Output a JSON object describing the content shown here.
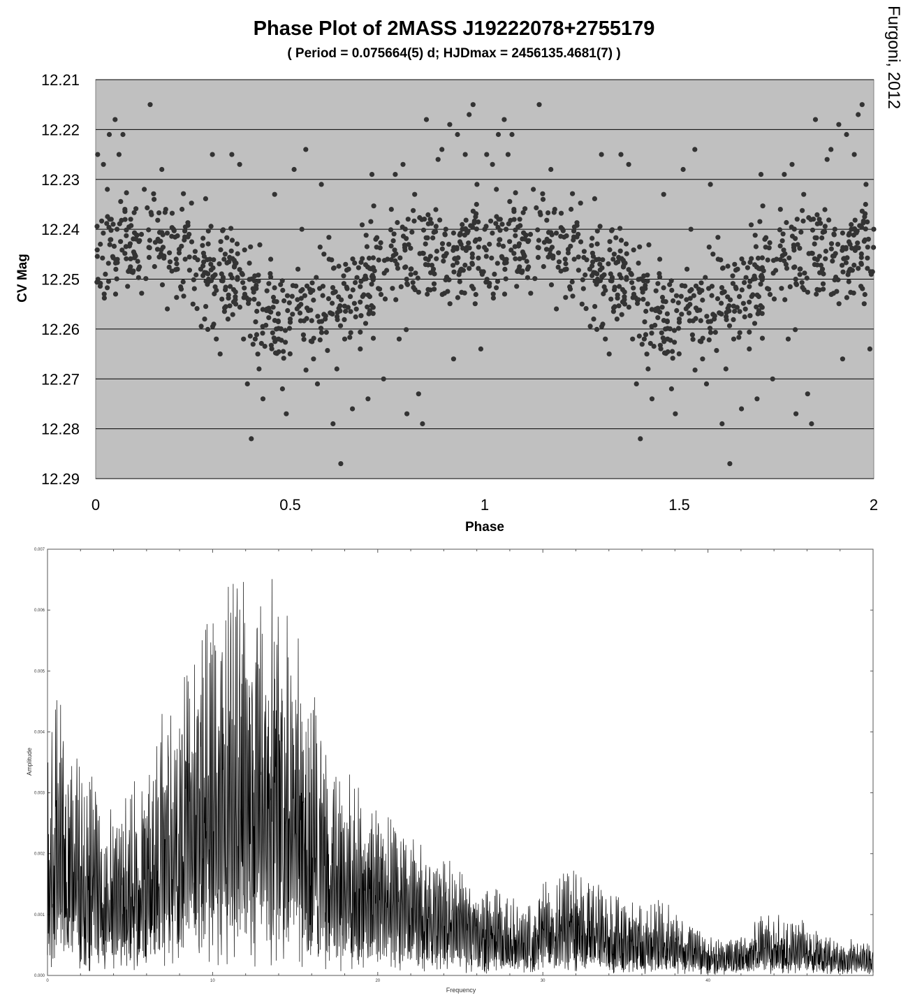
{
  "credit": "Furgoni, 2012",
  "chart_data": [
    {
      "type": "scatter",
      "title": "Phase Plot of 2MASS J19222078+2755179",
      "subtitle": "( Period = 0.075664(5) d; HJDmax = 2456135.4681(7) )",
      "xlabel": "Phase",
      "ylabel": "CV Mag",
      "xlim": [
        0,
        2
      ],
      "ylim": [
        12.21,
        12.29
      ],
      "y_inverted": true,
      "x_ticks": [
        "0",
        "0.5",
        "1",
        "1.5",
        "2"
      ],
      "y_ticks": [
        "12.21",
        "12.22",
        "12.23",
        "12.24",
        "12.25",
        "12.26",
        "12.27",
        "12.28",
        "12.29"
      ],
      "grid": "horizontal",
      "plot_background": "#c0c0c0",
      "marker_color": "#333333",
      "points": [
        [
          0.005,
          12.225
        ],
        [
          0.02,
          12.227
        ],
        [
          0.035,
          12.221
        ],
        [
          0.05,
          12.218
        ],
        [
          0.07,
          12.221
        ],
        [
          0.06,
          12.225
        ],
        [
          0.03,
          12.232
        ],
        [
          0.012,
          12.243
        ],
        [
          0.025,
          12.249
        ],
        [
          0.04,
          12.238
        ],
        [
          0.055,
          12.24
        ],
        [
          0.075,
          12.236
        ],
        [
          0.09,
          12.238
        ],
        [
          0.1,
          12.245
        ],
        [
          0.11,
          12.248
        ],
        [
          0.125,
          12.232
        ],
        [
          0.14,
          12.215
        ],
        [
          0.15,
          12.234
        ],
        [
          0.16,
          12.242
        ],
        [
          0.17,
          12.228
        ],
        [
          0.18,
          12.236
        ],
        [
          0.2,
          12.24
        ],
        [
          0.21,
          12.248
        ],
        [
          0.22,
          12.252
        ],
        [
          0.23,
          12.246
        ],
        [
          0.24,
          12.241
        ],
        [
          0.25,
          12.255
        ],
        [
          0.27,
          12.248
        ],
        [
          0.28,
          12.258
        ],
        [
          0.29,
          12.25
        ],
        [
          0.3,
          12.225
        ],
        [
          0.31,
          12.262
        ],
        [
          0.32,
          12.265
        ],
        [
          0.33,
          12.246
        ],
        [
          0.34,
          12.258
        ],
        [
          0.35,
          12.225
        ],
        [
          0.36,
          12.255
        ],
        [
          0.37,
          12.227
        ],
        [
          0.38,
          12.262
        ],
        [
          0.39,
          12.271
        ],
        [
          0.4,
          12.282
        ],
        [
          0.41,
          12.262
        ],
        [
          0.42,
          12.268
        ],
        [
          0.43,
          12.274
        ],
        [
          0.44,
          12.256
        ],
        [
          0.45,
          12.246
        ],
        [
          0.46,
          12.233
        ],
        [
          0.47,
          12.262
        ],
        [
          0.48,
          12.272
        ],
        [
          0.49,
          12.277
        ],
        [
          0.5,
          12.258
        ],
        [
          0.51,
          12.228
        ],
        [
          0.52,
          12.248
        ],
        [
          0.53,
          12.24
        ],
        [
          0.54,
          12.224
        ],
        [
          0.55,
          12.252
        ],
        [
          0.56,
          12.266
        ],
        [
          0.57,
          12.271
        ],
        [
          0.58,
          12.231
        ],
        [
          0.59,
          12.258
        ],
        [
          0.6,
          12.246
        ],
        [
          0.61,
          12.279
        ],
        [
          0.62,
          12.268
        ],
        [
          0.63,
          12.287
        ],
        [
          0.64,
          12.262
        ],
        [
          0.65,
          12.248
        ],
        [
          0.66,
          12.276
        ],
        [
          0.67,
          12.256
        ],
        [
          0.68,
          12.264
        ],
        [
          0.69,
          12.25
        ],
        [
          0.7,
          12.274
        ],
        [
          0.71,
          12.229
        ],
        [
          0.72,
          12.242
        ],
        [
          0.73,
          12.252
        ],
        [
          0.74,
          12.27
        ],
        [
          0.75,
          12.246
        ],
        [
          0.76,
          12.236
        ],
        [
          0.77,
          12.229
        ],
        [
          0.78,
          12.262
        ],
        [
          0.79,
          12.227
        ],
        [
          0.8,
          12.277
        ],
        [
          0.81,
          12.248
        ],
        [
          0.82,
          12.233
        ],
        [
          0.83,
          12.273
        ],
        [
          0.84,
          12.279
        ],
        [
          0.85,
          12.218
        ],
        [
          0.86,
          12.238
        ],
        [
          0.87,
          12.252
        ],
        [
          0.88,
          12.226
        ],
        [
          0.89,
          12.224
        ],
        [
          0.9,
          12.24
        ],
        [
          0.91,
          12.219
        ],
        [
          0.92,
          12.266
        ],
        [
          0.93,
          12.221
        ],
        [
          0.94,
          12.248
        ],
        [
          0.95,
          12.225
        ],
        [
          0.96,
          12.217
        ],
        [
          0.97,
          12.215
        ],
        [
          0.98,
          12.231
        ],
        [
          0.99,
          12.264
        ],
        [
          1.0,
          12.24
        ]
      ]
    },
    {
      "type": "line",
      "xlabel": "Frequency",
      "ylabel": "Amplitude",
      "xlim": [
        0,
        50
      ],
      "ylim": [
        0,
        0.007
      ],
      "x_ticks": [
        "0",
        "10",
        "20",
        "30",
        "40"
      ],
      "y_ticks": [
        "0.000",
        "0.001",
        "0.002",
        "0.003",
        "0.004",
        "0.005",
        "0.006",
        "0.007"
      ],
      "line_color": "#000000",
      "envelope": {
        "freq": [
          0,
          0.5,
          1,
          2,
          3,
          4,
          5,
          6,
          6.5,
          7,
          8,
          9,
          10,
          11,
          12,
          12.5,
          13,
          13.5,
          14,
          15,
          16,
          17,
          18,
          20,
          22,
          24,
          26,
          28,
          29,
          30,
          31,
          32,
          33,
          34,
          35,
          36,
          37,
          38,
          39,
          40,
          41,
          42,
          43,
          44,
          45,
          46,
          47,
          48,
          49,
          50
        ],
        "peak": [
          0.0042,
          0.0048,
          0.0045,
          0.0038,
          0.0033,
          0.0028,
          0.0031,
          0.0036,
          0.0039,
          0.0045,
          0.0052,
          0.0057,
          0.0062,
          0.0066,
          0.0069,
          0.0066,
          0.0069,
          0.0067,
          0.0068,
          0.0059,
          0.0049,
          0.004,
          0.0034,
          0.0028,
          0.0024,
          0.002,
          0.0016,
          0.0013,
          0.0012,
          0.0016,
          0.0017,
          0.0018,
          0.0016,
          0.0014,
          0.0013,
          0.0012,
          0.0013,
          0.0011,
          0.0009,
          0.00065,
          0.0006,
          0.0008,
          0.001,
          0.0011,
          0.001,
          0.0009,
          0.0007,
          0.0006,
          0.0006,
          0.0006
        ]
      }
    }
  ]
}
